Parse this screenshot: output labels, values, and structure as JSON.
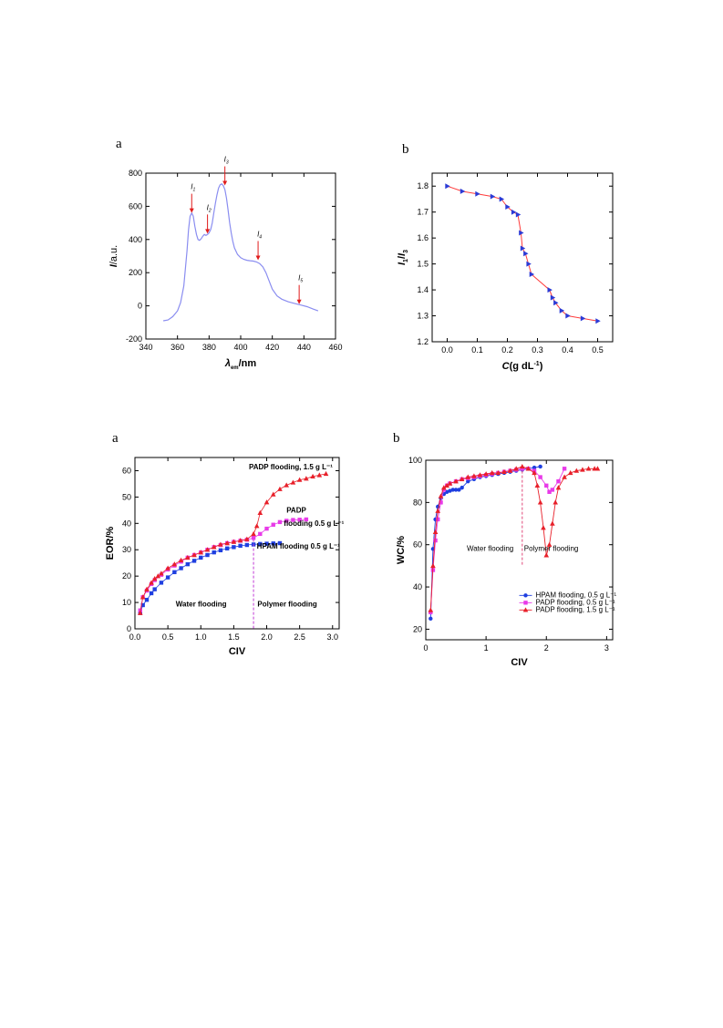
{
  "chart_data": [
    {
      "panel": "a",
      "type": "line",
      "xlabel": "λem/nm",
      "ylabel": "I/a.u.",
      "xlim": [
        340,
        460
      ],
      "ylim": [
        -200,
        800
      ],
      "xticks": [
        340,
        360,
        380,
        400,
        420,
        440,
        460
      ],
      "yticks": [
        -200,
        0,
        200,
        400,
        600,
        800
      ],
      "annotations": [
        {
          "label": "I1",
          "x": 369,
          "y": 555
        },
        {
          "label": "I2",
          "x": 379,
          "y": 430
        },
        {
          "label": "I3",
          "x": 390,
          "y": 720
        },
        {
          "label": "I4",
          "x": 411,
          "y": 270
        },
        {
          "label": "I5",
          "x": 437,
          "y": 5
        }
      ],
      "series": [
        {
          "color": "#8a8df0",
          "x": [
            351,
            354,
            357,
            360,
            362,
            364,
            366,
            367,
            368,
            369,
            370,
            371,
            372,
            373,
            374,
            375,
            376,
            377,
            378,
            379,
            380,
            381,
            382,
            383,
            384,
            385,
            386,
            387,
            388,
            389,
            390,
            391,
            392,
            393,
            394,
            395,
            396,
            398,
            400,
            402,
            404,
            406,
            408,
            410,
            412,
            414,
            416,
            418,
            420,
            423,
            426,
            430,
            434,
            438,
            442,
            446,
            449
          ],
          "y": [
            -90,
            -85,
            -65,
            -30,
            20,
            120,
            330,
            460,
            540,
            560,
            540,
            480,
            430,
            400,
            395,
            405,
            420,
            430,
            425,
            430,
            440,
            460,
            500,
            560,
            620,
            670,
            710,
            730,
            735,
            725,
            700,
            650,
            580,
            500,
            440,
            390,
            350,
            310,
            290,
            280,
            275,
            272,
            270,
            265,
            255,
            235,
            200,
            150,
            100,
            60,
            40,
            25,
            15,
            5,
            -5,
            -20,
            -30
          ]
        }
      ]
    },
    {
      "panel": "b",
      "type": "line",
      "xlabel": "C(g dL⁻¹)",
      "ylabel": "I1/I3",
      "xlim": [
        -0.05,
        0.55
      ],
      "ylim": [
        1.2,
        1.85
      ],
      "xticks": [
        0.0,
        0.1,
        0.2,
        0.3,
        0.4,
        0.5
      ],
      "yticks": [
        1.2,
        1.3,
        1.4,
        1.5,
        1.6,
        1.7,
        1.8
      ],
      "series": [
        {
          "line_color": "#ff3b3b",
          "marker_color": "#2b3bd6",
          "x": [
            0.0,
            0.05,
            0.1,
            0.15,
            0.18,
            0.2,
            0.22,
            0.235,
            0.245,
            0.25,
            0.26,
            0.27,
            0.28,
            0.34,
            0.35,
            0.36,
            0.38,
            0.4,
            0.45,
            0.5
          ],
          "y": [
            1.8,
            1.78,
            1.77,
            1.76,
            1.75,
            1.72,
            1.7,
            1.69,
            1.62,
            1.56,
            1.54,
            1.5,
            1.46,
            1.4,
            1.37,
            1.35,
            1.32,
            1.3,
            1.29,
            1.28
          ]
        }
      ]
    },
    {
      "panel": "a",
      "type": "scatter",
      "xlabel": "CIV",
      "ylabel": "EOR/%",
      "xlim": [
        0,
        3.1
      ],
      "ylim": [
        0,
        65
      ],
      "xticks": [
        0.0,
        0.5,
        1.0,
        1.5,
        2.0,
        2.5,
        3.0
      ],
      "yticks": [
        0,
        10,
        20,
        30,
        40,
        50,
        60
      ],
      "divider_x": 1.8,
      "region_labels": [
        "Water flooding",
        "Polymer flooding"
      ],
      "series": [
        {
          "name": "HPAM flooding 0.5 g L⁻¹",
          "color": "#1f3fe0",
          "marker": "square",
          "x": [
            0.08,
            0.12,
            0.18,
            0.25,
            0.3,
            0.4,
            0.5,
            0.6,
            0.7,
            0.8,
            0.9,
            1.0,
            1.1,
            1.2,
            1.3,
            1.4,
            1.5,
            1.6,
            1.7,
            1.8,
            1.9,
            2.0,
            2.1,
            2.2
          ],
          "y": [
            6,
            9,
            11,
            13.5,
            15,
            17.5,
            19.5,
            21.5,
            23,
            24.5,
            25.8,
            27,
            28,
            29,
            29.8,
            30.5,
            31,
            31.5,
            31.8,
            32,
            32.2,
            32.3,
            32.4,
            32.5
          ]
        },
        {
          "name": "PADP flooding 0.5 g L⁻¹",
          "color": "#e83ae8",
          "marker": "square",
          "x": [
            0.08,
            0.12,
            0.18,
            0.25,
            0.3,
            0.4,
            0.5,
            0.6,
            0.7,
            0.8,
            0.9,
            1.0,
            1.1,
            1.2,
            1.3,
            1.4,
            1.5,
            1.6,
            1.7,
            1.8,
            1.9,
            2.0,
            2.1,
            2.2,
            2.3,
            2.4,
            2.5,
            2.6
          ],
          "y": [
            7,
            12,
            14.5,
            17,
            18.5,
            20.5,
            22.5,
            24,
            25.5,
            27,
            28,
            29,
            30,
            31,
            31.8,
            32.5,
            33,
            33.4,
            33.8,
            34.5,
            36,
            38,
            39.5,
            40.5,
            41,
            41.3,
            41.4,
            41.5
          ]
        },
        {
          "name": "PADP flooding, 1.5 g L⁻¹",
          "color": "#e8202a",
          "marker": "triangle",
          "x": [
            0.08,
            0.12,
            0.18,
            0.25,
            0.3,
            0.35,
            0.4,
            0.5,
            0.6,
            0.7,
            0.8,
            0.9,
            1.0,
            1.1,
            1.2,
            1.3,
            1.4,
            1.5,
            1.6,
            1.7,
            1.8,
            1.85,
            1.9,
            2.0,
            2.1,
            2.2,
            2.3,
            2.4,
            2.5,
            2.6,
            2.7,
            2.8,
            2.9
          ],
          "y": [
            6,
            12,
            15,
            17.5,
            19,
            20,
            21,
            23,
            24.5,
            26,
            27,
            28,
            29,
            30,
            31,
            32,
            32.5,
            33,
            33.5,
            34,
            36,
            39,
            44,
            48,
            51,
            53,
            54.5,
            55.5,
            56.5,
            57,
            57.8,
            58.3,
            58.8
          ]
        }
      ],
      "series_labels": [
        {
          "text": "PADP flooding, 1.5 g L⁻¹"
        },
        {
          "text": "PADP"
        },
        {
          "text": "flooding 0.5 g L⁻¹"
        },
        {
          "text": "HPAM flooding 0.5 g L⁻¹"
        }
      ]
    },
    {
      "panel": "b",
      "type": "line",
      "xlabel": "CIV",
      "ylabel": "WC/%",
      "xlim": [
        0,
        3.1
      ],
      "ylim": [
        15,
        100
      ],
      "xticks": [
        0,
        1,
        2,
        3
      ],
      "yticks": [
        20,
        40,
        60,
        80,
        100
      ],
      "divider_x": 1.6,
      "region_labels": [
        "Water flooding",
        "Polymer flooding"
      ],
      "legend": "bottom-right",
      "series": [
        {
          "name": "HPAM flooding, 0.5 g L⁻¹",
          "color": "#1f3fe0",
          "marker": "circle",
          "x": [
            0.08,
            0.12,
            0.16,
            0.2,
            0.25,
            0.3,
            0.35,
            0.4,
            0.45,
            0.5,
            0.55,
            0.6,
            0.7,
            0.8,
            0.9,
            1.0,
            1.1,
            1.2,
            1.3,
            1.4,
            1.5,
            1.6,
            1.7,
            1.8,
            1.9
          ],
          "y": [
            25,
            58,
            72,
            78,
            82,
            84,
            85,
            85.5,
            86,
            86,
            86,
            87,
            90,
            91,
            92,
            92.5,
            93,
            93.5,
            94,
            94.5,
            95,
            95.5,
            96,
            96.5,
            97
          ]
        },
        {
          "name": "PADP flooding, 0.5 g L⁻¹",
          "color": "#e83ae8",
          "marker": "square",
          "x": [
            0.08,
            0.12,
            0.16,
            0.2,
            0.25,
            0.3,
            0.35,
            0.4,
            0.5,
            0.6,
            0.7,
            0.8,
            0.9,
            1.0,
            1.1,
            1.2,
            1.3,
            1.4,
            1.5,
            1.6,
            1.7,
            1.8,
            1.9,
            2.0,
            2.05,
            2.1,
            2.2,
            2.3
          ],
          "y": [
            28,
            48,
            62,
            72,
            80,
            86,
            88,
            89,
            90,
            91,
            91.5,
            92,
            92.5,
            93,
            93.5,
            94,
            94.5,
            95,
            95.5,
            96,
            96,
            95,
            92,
            88,
            85,
            86,
            90,
            96
          ]
        },
        {
          "name": "PADP flooding, 1.5 g L⁻¹",
          "color": "#e8202a",
          "marker": "triangle",
          "x": [
            0.08,
            0.12,
            0.16,
            0.2,
            0.25,
            0.3,
            0.35,
            0.4,
            0.5,
            0.6,
            0.7,
            0.8,
            0.9,
            1.0,
            1.1,
            1.2,
            1.3,
            1.4,
            1.5,
            1.6,
            1.7,
            1.8,
            1.85,
            1.9,
            1.95,
            2.0,
            2.05,
            2.1,
            2.15,
            2.2,
            2.3,
            2.4,
            2.5,
            2.6,
            2.7,
            2.8,
            2.85
          ],
          "y": [
            29,
            50,
            66,
            76,
            83,
            87,
            88,
            89,
            90,
            91,
            92,
            92.5,
            93,
            93.5,
            94,
            94,
            94.5,
            95,
            96,
            97,
            96,
            94,
            88,
            80,
            68,
            55,
            60,
            70,
            80,
            87,
            92,
            94,
            95,
            95.5,
            96,
            96,
            96
          ]
        }
      ]
    }
  ]
}
